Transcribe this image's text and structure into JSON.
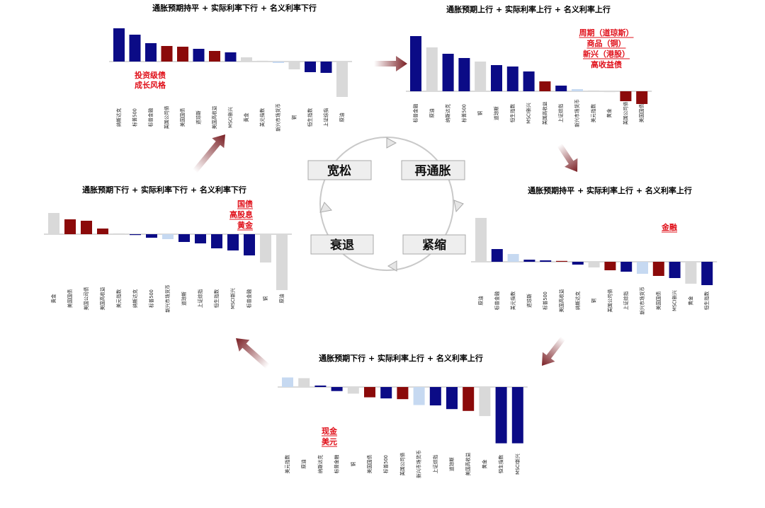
{
  "colors": {
    "navy": "#0b0b86",
    "darkred": "#8b0a0a",
    "grey": "#d9d9d9",
    "lightblue": "#c6d9f1",
    "annotation": "#e0101a",
    "arrow": "#7a1f24"
  },
  "cycle": {
    "phases": [
      "宽松",
      "再通胀",
      "衰退",
      "紧缩"
    ]
  },
  "chart_data": [
    {
      "type": "bar",
      "title": "通胀预期持平 + 实际利率下行 + 名义利率下行",
      "categories": [
        "纳斯达克",
        "标普500",
        "标普金融",
        "美国公司债",
        "美国国债",
        "道琼斯",
        "美国高收益",
        "MSCI新兴",
        "黄金",
        "美元指数",
        "新兴市场货币",
        "铜",
        "恒生指数",
        "上证综指",
        "原油"
      ],
      "values": [
        47,
        38,
        26,
        22,
        21,
        18,
        15,
        13,
        6,
        0.6,
        -2,
        -11,
        -15,
        -16,
        -50
      ],
      "colors": [
        "navy",
        "navy",
        "navy",
        "darkred",
        "darkred",
        "navy",
        "darkred",
        "navy",
        "grey",
        "grey",
        "lightblue",
        "grey",
        "navy",
        "navy",
        "grey"
      ],
      "annotations": [
        {
          "text": "投资级债",
          "underline": false
        },
        {
          "text": "成长风格",
          "underline": false
        }
      ]
    },
    {
      "type": "bar",
      "title": "通胀预期上行  + 实际利率上行  + 名义利率上行",
      "categories": [
        "标普金融",
        "原油",
        "纳斯达克",
        "标普500",
        "铜",
        "道琼斯",
        "恒生指数",
        "MSCI新兴",
        "美国高收益",
        "上证综指",
        "新兴市场货币",
        "美元指数",
        "黄金",
        "美国公司债",
        "美国国债"
      ],
      "values": [
        78,
        62,
        53,
        47,
        42,
        37,
        35,
        28,
        14,
        8,
        3,
        1,
        -1,
        -14,
        -18
      ],
      "colors": [
        "navy",
        "grey",
        "navy",
        "navy",
        "grey",
        "navy",
        "navy",
        "navy",
        "darkred",
        "navy",
        "lightblue",
        "grey",
        "grey",
        "darkred",
        "darkred"
      ],
      "annotations": [
        {
          "text": "周期（道琼斯）",
          "underline": true
        },
        {
          "text": "商品（铜）",
          "underline": true
        },
        {
          "text": "新兴（港股）",
          "underline": true
        },
        {
          "text": "高收益债",
          "underline": false
        }
      ]
    },
    {
      "type": "bar",
      "title": "通胀预期持平 + 实际利率上行 + 名义利率上行",
      "categories": [
        "原油",
        "标普金融",
        "美元指数",
        "道琼斯",
        "标普500",
        "美国高收益",
        "纳斯达克",
        "铜",
        "美国公司债",
        "上证综指",
        "新兴市场货币",
        "美国国债",
        "MSCI新兴",
        "黄金",
        "恒生指数"
      ],
      "values": [
        62,
        18,
        11,
        3,
        2,
        0.3,
        -4,
        -8,
        -12,
        -14,
        -17,
        -20,
        -23,
        -31,
        -33
      ],
      "colors": [
        "grey",
        "navy",
        "lightblue",
        "navy",
        "navy",
        "darkred",
        "navy",
        "grey",
        "darkred",
        "navy",
        "lightblue",
        "darkred",
        "navy",
        "grey",
        "navy"
      ],
      "annotations": [
        {
          "text": "金融",
          "underline": true
        }
      ]
    },
    {
      "type": "bar",
      "title": "通胀预期下行 + 实际利率下行 + 名义利率下行",
      "categories": [
        "黄金",
        "美国国债",
        "美国公司债",
        "美国高收益",
        "美元指数",
        "纳斯达克",
        "标普500",
        "新兴市场货币",
        "道琼斯",
        "上证综指",
        "恒生指数",
        "MSCI新兴",
        "标普金融",
        "铜",
        "原油"
      ],
      "values": [
        30,
        21,
        19,
        8,
        0.5,
        -1,
        -5,
        -7,
        -11,
        -13,
        -20,
        -23,
        -30,
        -40,
        -79
      ],
      "colors": [
        "grey",
        "darkred",
        "darkred",
        "darkred",
        "grey",
        "navy",
        "navy",
        "lightblue",
        "navy",
        "navy",
        "navy",
        "navy",
        "navy",
        "grey",
        "grey"
      ],
      "annotations": [
        {
          "text": "国债",
          "underline": true
        },
        {
          "text": "高股息",
          "underline": true
        },
        {
          "text": "黄金",
          "underline": true
        }
      ]
    },
    {
      "type": "bar",
      "title": "通胀预期下行 + 实际利率上行 + 名义利率上行",
      "categories": [
        "美元指数",
        "原油",
        "纳斯达克",
        "标普金融",
        "铜",
        "美国国债",
        "标普500",
        "美国公司债",
        "新兴市场货币",
        "上证综指",
        "道琼斯",
        "美国高收益",
        "黄金",
        "恒生指数",
        "MSCI新兴"
      ],
      "values": [
        26,
        24,
        4,
        -11,
        -18,
        -28,
        -31,
        -33,
        -49,
        -50,
        -60,
        -65,
        -79,
        -153,
        -153
      ],
      "colors": [
        "lightblue",
        "grey",
        "navy",
        "navy",
        "grey",
        "darkred",
        "navy",
        "darkred",
        "lightblue",
        "navy",
        "navy",
        "darkred",
        "grey",
        "navy",
        "navy"
      ],
      "annotations": [
        {
          "text": "现金",
          "underline": true
        },
        {
          "text": "美元",
          "underline": true
        }
      ]
    }
  ]
}
